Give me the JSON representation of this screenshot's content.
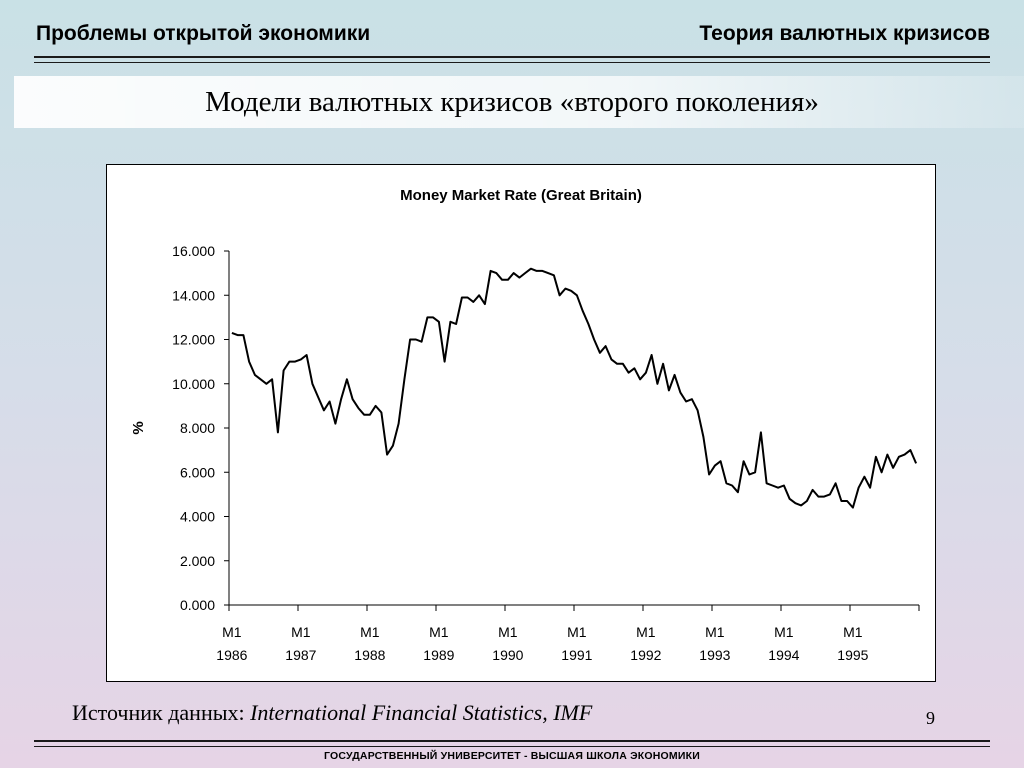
{
  "header": {
    "left": "Проблемы открытой экономики",
    "right": "Теория валютных кризисов"
  },
  "slide": {
    "title": "Модели валютных кризисов «второго поколения»",
    "source_prefix": "Источник данных: ",
    "source_name": "International Financial Statistics, IMF",
    "page_number": "9"
  },
  "footer": {
    "text": "ГОСУДАРСТВЕННЫЙ УНИВЕРСИТЕТ - ВЫСШАЯ ШКОЛА ЭКОНОМИКИ"
  },
  "chart_data": {
    "type": "line",
    "title": "Money Market Rate (Great Britain)",
    "ylabel": "%",
    "xlabel": "",
    "ylim": [
      0,
      16
    ],
    "y_ticks": [
      0,
      2,
      4,
      6,
      8,
      10,
      12,
      14,
      16
    ],
    "y_tick_labels": [
      "0.000",
      "2.000",
      "4.000",
      "6.000",
      "8.000",
      "10.000",
      "12.000",
      "14.000",
      "16.000"
    ],
    "x_tick_labels": [
      [
        "M1",
        "1986"
      ],
      [
        "M1",
        "1987"
      ],
      [
        "M1",
        "1988"
      ],
      [
        "M1",
        "1989"
      ],
      [
        "M1",
        "1990"
      ],
      [
        "M1",
        "1991"
      ],
      [
        "M1",
        "1992"
      ],
      [
        "M1",
        "1993"
      ],
      [
        "M1",
        "1994"
      ],
      [
        "M1",
        "1995"
      ]
    ],
    "start": "1986-01",
    "frequency": "monthly",
    "grid": false,
    "legend": "none",
    "line_color": "#000000",
    "values": [
      12.3,
      12.2,
      12.2,
      11.0,
      10.4,
      10.2,
      10.0,
      10.2,
      7.8,
      10.6,
      11.0,
      11.0,
      11.1,
      11.3,
      10.0,
      9.4,
      8.8,
      9.2,
      8.2,
      9.3,
      10.2,
      9.3,
      8.9,
      8.6,
      8.6,
      9.0,
      8.7,
      6.8,
      7.2,
      8.2,
      10.2,
      12.0,
      12.0,
      11.9,
      13.0,
      13.0,
      12.8,
      11.0,
      12.8,
      12.7,
      13.9,
      13.9,
      13.7,
      14.0,
      13.6,
      15.1,
      15.0,
      14.7,
      14.7,
      15.0,
      14.8,
      15.0,
      15.2,
      15.1,
      15.1,
      15.0,
      14.9,
      14.0,
      14.3,
      14.2,
      14.0,
      13.3,
      12.7,
      12.0,
      11.4,
      11.7,
      11.1,
      10.9,
      10.9,
      10.5,
      10.7,
      10.2,
      10.5,
      11.3,
      10.0,
      10.9,
      9.7,
      10.4,
      9.6,
      9.2,
      9.3,
      8.8,
      7.6,
      5.9,
      6.3,
      6.5,
      5.5,
      5.4,
      5.1,
      6.5,
      5.9,
      6.0,
      7.8,
      5.5,
      5.4,
      5.3,
      5.4,
      4.8,
      4.6,
      4.5,
      4.7,
      5.2,
      4.9,
      4.9,
      5.0,
      5.5,
      4.7,
      4.7,
      4.4,
      5.3,
      5.8,
      5.3,
      6.7,
      6.0,
      6.8,
      6.2,
      6.7,
      6.8,
      7.0,
      6.4
    ]
  }
}
